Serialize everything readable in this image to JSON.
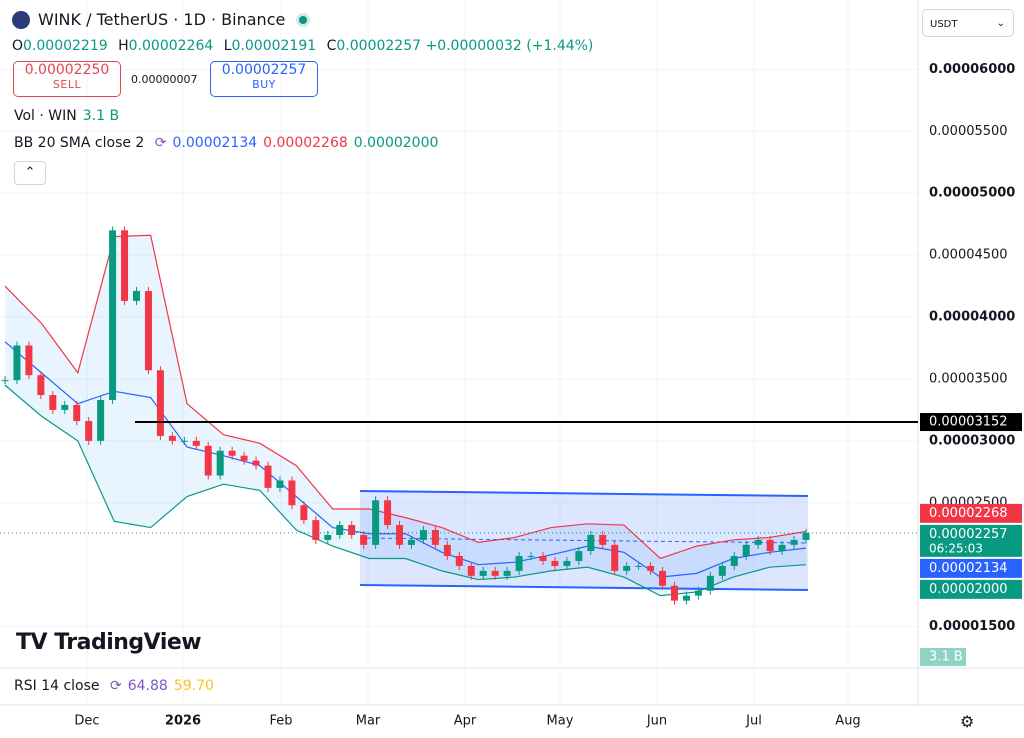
{
  "header": {
    "symbol": "WINK / TetherUS · 1D · Binance",
    "ohlc": [
      {
        "label": "O",
        "value": "0.00002219"
      },
      {
        "label": "H",
        "value": "0.00002264"
      },
      {
        "label": "L",
        "value": "0.00002191"
      },
      {
        "label": "C",
        "value": "0.00002257"
      }
    ],
    "change": "+0.00000032 (+1.44%)"
  },
  "trade": {
    "sell_price": "0.00002250",
    "sell": "SELL",
    "spread": "0.00000007",
    "buy_price": "0.00002257",
    "buy": "BUY"
  },
  "currency": "USDT",
  "indicators": {
    "volume": {
      "name": "Vol · WIN",
      "value": "3.1 B"
    },
    "bb": {
      "name": "BB 20 SMA close 2",
      "values": [
        "0.00002134",
        "0.00002268",
        "0.00002000"
      ]
    },
    "rsi": {
      "name": "RSI 14 close",
      "values": [
        "64.88",
        "59.70"
      ]
    }
  },
  "chart_data": {
    "type": "candlestick",
    "closes": [
      3.49e-05,
      3.77e-05,
      3.53e-05,
      3.37e-05,
      3.25e-05,
      3.29e-05,
      3.16e-05,
      3e-05,
      3.33e-05,
      4.7e-05,
      4.13e-05,
      4.21e-05,
      3.57e-05,
      3.04e-05,
      3e-05,
      3e-05,
      2.96e-05,
      2.72e-05,
      2.92e-05,
      2.88e-05,
      2.84e-05,
      2.8e-05,
      2.62e-05,
      2.68e-05,
      2.48e-05,
      2.36e-05,
      2.2e-05,
      2.24e-05,
      2.32e-05,
      2.24e-05,
      2.16e-05,
      2.52e-05,
      2.32e-05,
      2.16e-05,
      2.2e-05,
      2.28e-05,
      2.16e-05,
      2.07e-05,
      1.99e-05,
      1.91e-05,
      1.95e-05,
      1.91e-05,
      1.95e-05,
      2.07e-05,
      2.07e-05,
      2.03e-05,
      1.99e-05,
      2.03e-05,
      2.11e-05,
      2.24e-05,
      2.16e-05,
      1.95e-05,
      1.99e-05,
      1.99e-05,
      1.95e-05,
      1.83e-05,
      1.71e-05,
      1.75e-05,
      1.79e-05,
      1.91e-05,
      1.99e-05,
      2.07e-05,
      2.16e-05,
      2.2e-05,
      2.11e-05,
      2.16e-05,
      2.2e-05,
      2.257e-05
    ],
    "bands": [
      {
        "name": "upper",
        "color": "#f23645",
        "values": [
          4.25e-05,
          3.95e-05,
          3.55e-05,
          4.65e-05,
          4.66e-05,
          3.3e-05,
          3.05e-05,
          2.98e-05,
          2.8e-05,
          2.45e-05,
          2.45e-05,
          2.38e-05,
          2.3e-05,
          2.18e-05,
          2.22e-05,
          2.3e-05,
          2.33e-05,
          2.32e-05,
          2.05e-05,
          2.15e-05,
          2.2e-05,
          2.22e-05,
          2.268e-05
        ]
      },
      {
        "name": "basis",
        "color": "#2962ff",
        "values": [
          3.8e-05,
          3.55e-05,
          3.3e-05,
          3.4e-05,
          3.35e-05,
          2.95e-05,
          2.88e-05,
          2.8e-05,
          2.55e-05,
          2.3e-05,
          2.25e-05,
          2.25e-05,
          2.1e-05,
          2e-05,
          2.02e-05,
          2.08e-05,
          2.15e-05,
          2.1e-05,
          1.9e-05,
          1.93e-05,
          2.05e-05,
          2.1e-05,
          2.134e-05
        ]
      },
      {
        "name": "lower",
        "color": "#089981",
        "values": [
          3.45e-05,
          3.2e-05,
          3e-05,
          2.35e-05,
          2.3e-05,
          2.55e-05,
          2.65e-05,
          2.6e-05,
          2.28e-05,
          2.15e-05,
          2.05e-05,
          2.05e-05,
          1.95e-05,
          1.88e-05,
          1.9e-05,
          1.95e-05,
          1.98e-05,
          1.9e-05,
          1.75e-05,
          1.78e-05,
          1.9e-05,
          1.98e-05,
          2e-05
        ]
      }
    ],
    "up_color": "#089981",
    "down_color": "#f23645",
    "ylim": [
      1.19e-05,
      6.56e-05
    ],
    "yticks": [
      {
        "value": 1.5e-05,
        "label": "0.00001500"
      },
      {
        "value": 2.5e-05,
        "label": "0.00002500"
      },
      {
        "value": 3e-05,
        "label": "0.00003000"
      },
      {
        "value": 3.5e-05,
        "label": "0.00003500"
      },
      {
        "value": 4e-05,
        "label": "0.00004000"
      },
      {
        "value": 4.5e-05,
        "label": "0.00004500"
      },
      {
        "value": 5e-05,
        "label": "0.00005000"
      },
      {
        "value": 5.5e-05,
        "label": "0.00005500"
      },
      {
        "value": 6e-05,
        "label": "0.00006000"
      }
    ],
    "x_labels": [
      "Dec",
      "2026",
      "Feb",
      "Mar",
      "Apr",
      "May",
      "Jun",
      "Jul",
      "Aug"
    ],
    "level": {
      "value": 3.152e-05,
      "label": "0.00003152"
    },
    "price_labels": [
      {
        "value": 2.268e-05,
        "label": "0.00002268",
        "color": "#f23645"
      },
      {
        "value": 2.257e-05,
        "label": "0.00002257",
        "color": "#089981",
        "countdown": "06:25:03"
      },
      {
        "value": 2.134e-05,
        "label": "0.00002134",
        "color": "#2962ff"
      },
      {
        "value": 2e-05,
        "label": "0.00002000",
        "color": "#089981"
      }
    ],
    "volume_label": "3.1 B"
  }
}
